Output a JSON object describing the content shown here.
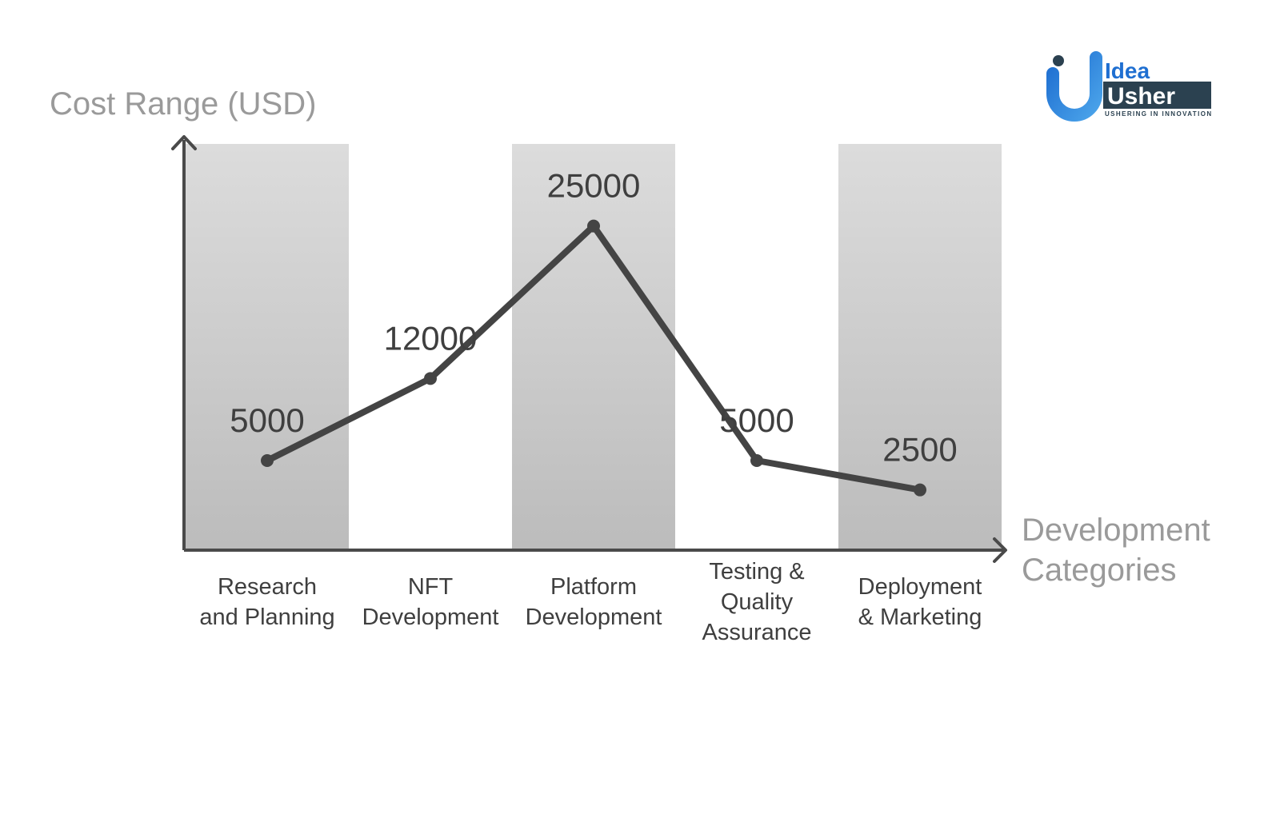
{
  "chart_data": {
    "type": "line",
    "title": "",
    "ylabel": "Cost Range (USD)",
    "xlabel": "Development Categories",
    "xlabel_lines": [
      "Development",
      "Categories"
    ],
    "categories": [
      [
        "Research",
        "and Planning"
      ],
      [
        "NFT",
        "Development"
      ],
      [
        "Platform",
        "Development"
      ],
      [
        "Testing &",
        "Quality",
        "Assurance"
      ],
      [
        "Deployment",
        "& Marketing"
      ]
    ],
    "values": [
      5000,
      12000,
      25000,
      5000,
      2500
    ],
    "data_labels": [
      "5000",
      "12000",
      "25000",
      "5000",
      "2500"
    ],
    "ylim": [
      -2500,
      32000
    ],
    "grid": false,
    "legend": "none",
    "line_color": "#444444",
    "band_color_top": "#dcdcdc",
    "band_color_bottom": "#bcbcbc",
    "axis_color": "#4a4a4a"
  },
  "logo": {
    "word1": "Idea",
    "word2": "Usher",
    "tagline": "USHERING IN INNOVATION",
    "colors": {
      "blue": "#1f6fd1",
      "light_blue": "#4aa3ea",
      "dark": "#2b4150"
    }
  }
}
